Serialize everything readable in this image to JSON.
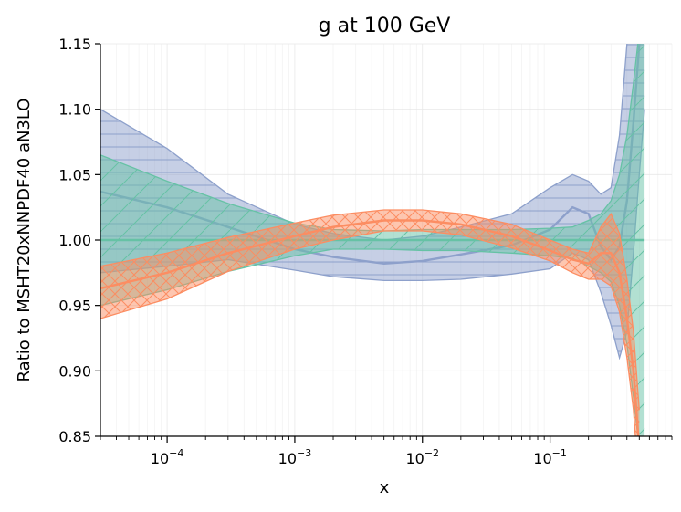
{
  "chart_data": {
    "type": "area",
    "title": "g at 100 GeV",
    "xlabel": "x",
    "ylabel": "Ratio to MSHT20xNNPDF40 aN3LO",
    "xscale": "log",
    "xlim": [
      3e-05,
      0.9
    ],
    "ylim": [
      0.85,
      1.15
    ],
    "grid": true,
    "legend": "none",
    "x_ticks": [
      {
        "value": 0.0001,
        "base": "10",
        "exp": "−4"
      },
      {
        "value": 0.001,
        "base": "10",
        "exp": "−3"
      },
      {
        "value": 0.01,
        "base": "10",
        "exp": "−2"
      },
      {
        "value": 0.1,
        "base": "10",
        "exp": "−1"
      }
    ],
    "y_ticks": [
      {
        "value": 0.85,
        "label": "0.85"
      },
      {
        "value": 0.9,
        "label": "0.90"
      },
      {
        "value": 0.95,
        "label": "0.95"
      },
      {
        "value": 1.0,
        "label": "1.00"
      },
      {
        "value": 1.05,
        "label": "1.05"
      },
      {
        "value": 1.1,
        "label": "1.10"
      },
      {
        "value": 1.15,
        "label": "1.15"
      }
    ],
    "series": [
      {
        "color": "#8da0cb",
        "hatch": "horizontal",
        "x": [
          3e-05,
          0.0001,
          0.0003,
          0.001,
          0.002,
          0.005,
          0.01,
          0.02,
          0.05,
          0.1,
          0.15,
          0.2,
          0.25,
          0.3,
          0.35,
          0.4,
          0.45,
          0.5,
          0.55
        ],
        "central": [
          1.037,
          1.025,
          1.01,
          0.993,
          0.987,
          0.982,
          0.984,
          0.989,
          0.996,
          1.008,
          1.025,
          1.02,
          0.995,
          0.985,
          0.995,
          1.03,
          1.09,
          1.15,
          1.2
        ],
        "upper": [
          1.1,
          1.07,
          1.035,
          1.012,
          1.005,
          1.0,
          1.003,
          1.01,
          1.02,
          1.04,
          1.05,
          1.045,
          1.035,
          1.04,
          1.08,
          1.15,
          1.2,
          1.2,
          1.2
        ],
        "lower": [
          0.975,
          0.98,
          0.985,
          0.977,
          0.972,
          0.969,
          0.969,
          0.97,
          0.974,
          0.978,
          0.99,
          0.985,
          0.96,
          0.935,
          0.91,
          0.93,
          0.99,
          1.05,
          1.1
        ]
      },
      {
        "color": "#66c2a5",
        "hatch": "diagonal",
        "x": [
          3e-05,
          0.0001,
          0.0003,
          0.001,
          0.002,
          0.005,
          0.01,
          0.02,
          0.05,
          0.1,
          0.15,
          0.2,
          0.25,
          0.3,
          0.35,
          0.4,
          0.45,
          0.5,
          0.55
        ],
        "central": [
          1.0,
          1.0,
          1.0,
          1.0,
          1.0,
          1.0,
          1.0,
          1.0,
          1.0,
          1.0,
          1.0,
          1.0,
          1.0,
          1.0,
          1.0,
          1.0,
          1.0,
          1.0,
          1.0
        ],
        "upper": [
          1.065,
          1.045,
          1.028,
          1.013,
          1.008,
          1.007,
          1.008,
          1.008,
          1.008,
          1.009,
          1.01,
          1.015,
          1.02,
          1.03,
          1.05,
          1.08,
          1.12,
          1.16,
          1.2
        ],
        "lower": [
          0.95,
          0.962,
          0.976,
          0.988,
          0.993,
          0.993,
          0.992,
          0.992,
          0.99,
          0.988,
          0.986,
          0.98,
          0.975,
          0.968,
          0.95,
          0.92,
          0.88,
          0.84,
          0.8
        ]
      },
      {
        "color": "#fc8d62",
        "hatch": "crosshatch",
        "x": [
          3e-05,
          0.0001,
          0.0003,
          0.001,
          0.002,
          0.005,
          0.01,
          0.02,
          0.05,
          0.1,
          0.15,
          0.2,
          0.25,
          0.3,
          0.35,
          0.4,
          0.45,
          0.5
        ],
        "central": [
          0.963,
          0.975,
          0.99,
          1.003,
          1.01,
          1.015,
          1.015,
          1.012,
          1.003,
          0.992,
          0.985,
          0.982,
          0.99,
          0.99,
          0.975,
          0.94,
          0.9,
          0.84
        ],
        "upper": [
          0.98,
          0.99,
          1.002,
          1.013,
          1.019,
          1.023,
          1.023,
          1.02,
          1.012,
          1.0,
          0.993,
          0.99,
          1.01,
          1.02,
          1.005,
          0.97,
          0.93,
          0.87
        ],
        "lower": [
          0.94,
          0.955,
          0.976,
          0.993,
          1.0,
          1.007,
          1.007,
          1.004,
          0.994,
          0.984,
          0.975,
          0.97,
          0.97,
          0.965,
          0.945,
          0.91,
          0.87,
          0.81
        ]
      }
    ]
  }
}
